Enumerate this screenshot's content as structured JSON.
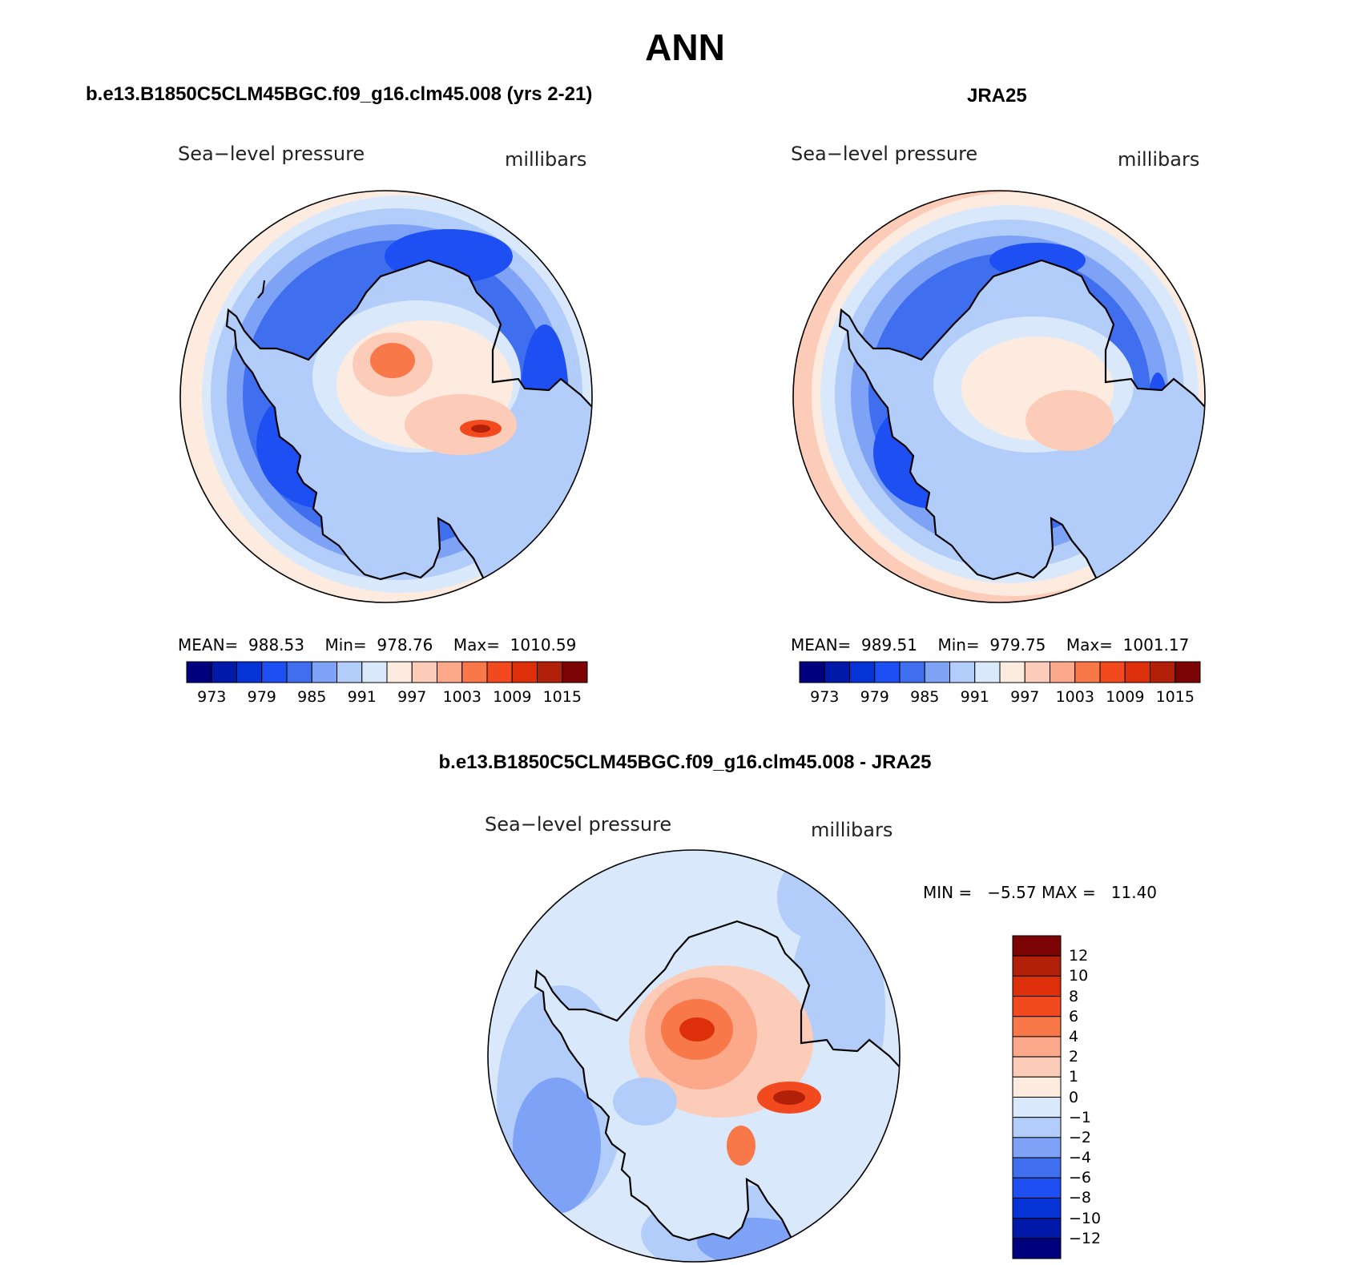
{
  "header": {
    "title": "ANN"
  },
  "panels": [
    {
      "title": "b.e13.B1850C5CLM45BGC.f09_g16.clm45.008 (yrs 2-21)",
      "variable": "Sea−level pressure",
      "units": "millibars",
      "stats": {
        "mean_label": "MEAN=",
        "mean": "988.53",
        "min_label": "Min=",
        "min": "978.76",
        "max_label": "Max=",
        "max": "1010.59"
      }
    },
    {
      "title": "JRA25",
      "variable": "Sea−level pressure",
      "units": "millibars",
      "stats": {
        "mean_label": "MEAN=",
        "mean": "989.51",
        "min_label": "Min=",
        "min": "979.75",
        "max_label": "Max=",
        "max": "1001.17"
      }
    }
  ],
  "diff_panel": {
    "title": "b.e13.B1850C5CLM45BGC.f09_g16.clm45.008 - JRA25",
    "variable": "Sea−level pressure",
    "units": "millibars",
    "minmax_text": "MIN =   −5.57 MAX =   11.40"
  },
  "colorbar_abs": {
    "colors": [
      "#00007f",
      "#0019a8",
      "#0633d6",
      "#1e4ff2",
      "#3f6fef",
      "#7ea2f5",
      "#b2cdf9",
      "#d9e9fb",
      "#feebe0",
      "#fdccb8",
      "#fba88b",
      "#f87849",
      "#f3491f",
      "#dd300a",
      "#b2200a",
      "#7c0404"
    ],
    "tick_labels": [
      "973",
      "979",
      "985",
      "991",
      "997",
      "1003",
      "1009",
      "1015"
    ]
  },
  "colorbar_diff": {
    "colors": [
      "#7c0404",
      "#b2200a",
      "#dd300a",
      "#f3491f",
      "#f87849",
      "#fba88b",
      "#fdccb8",
      "#feebe0",
      "#d9e9fb",
      "#b2cdf9",
      "#7ea2f5",
      "#3f6fef",
      "#1e4ff2",
      "#0633d6",
      "#0019a8",
      "#00007f"
    ],
    "tick_labels": [
      "12",
      "10",
      "8",
      "6",
      "4",
      "2",
      "1",
      "0",
      "−1",
      "−2",
      "−4",
      "−6",
      "−8",
      "−10",
      "−12"
    ]
  },
  "map_colors": {
    "ocean_deep": "#1e4ff2",
    "ocean_mid": "#3f6fef",
    "ocean_light": "#7ea2f5",
    "ocean_pale": "#b2cdf9",
    "ocean_paler": "#d9e9fb",
    "warm_pale": "#feebe0",
    "warm_light": "#fdccb8",
    "warm_mid": "#fba88b",
    "warm_strong": "#f87849",
    "warm_hot": "#f3491f",
    "coast": "#000000"
  }
}
